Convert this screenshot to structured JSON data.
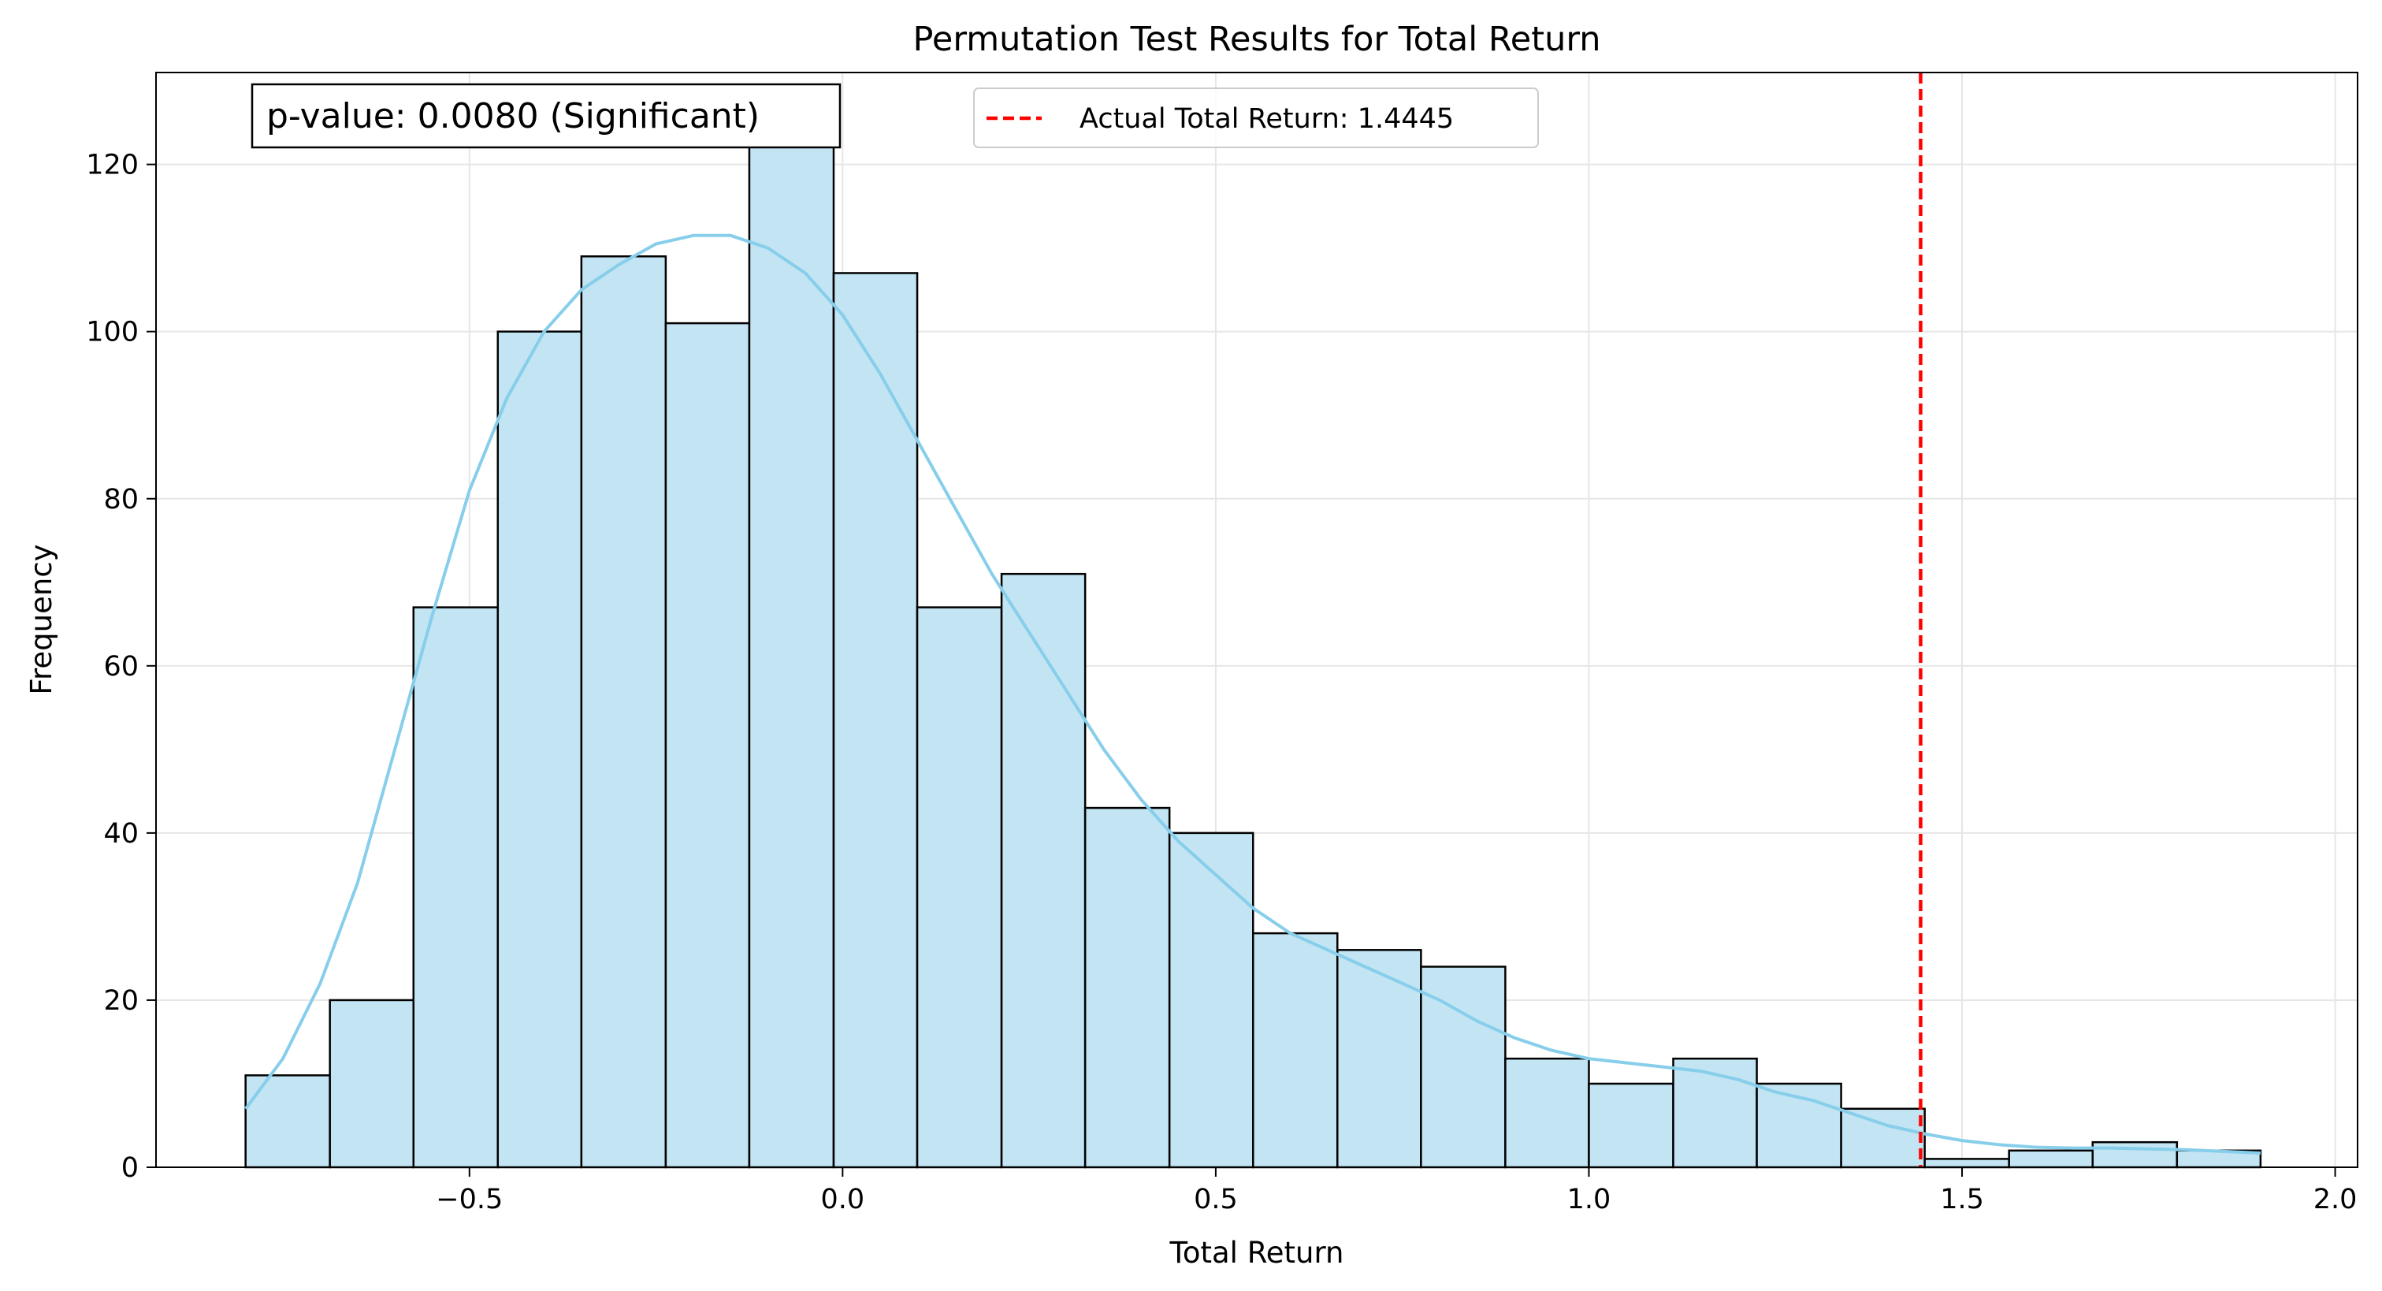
{
  "chart_data": {
    "type": "bar",
    "title": "Permutation Test Results for Total Return",
    "xlabel": "Total Return",
    "ylabel": "Frequency",
    "xlim": [
      -0.92,
      2.03
    ],
    "ylim": [
      0,
      131
    ],
    "xticks": [
      {
        "value": -0.5,
        "label": "−0.5"
      },
      {
        "value": 0.0,
        "label": "0.0"
      },
      {
        "value": 0.5,
        "label": "0.5"
      },
      {
        "value": 1.0,
        "label": "1.0"
      },
      {
        "value": 1.5,
        "label": "1.5"
      },
      {
        "value": 2.0,
        "label": "2.0"
      }
    ],
    "yticks": [
      {
        "value": 0,
        "label": "0"
      },
      {
        "value": 20,
        "label": "20"
      },
      {
        "value": 40,
        "label": "40"
      },
      {
        "value": 60,
        "label": "60"
      },
      {
        "value": 80,
        "label": "80"
      },
      {
        "value": 100,
        "label": "100"
      },
      {
        "value": 120,
        "label": "120"
      }
    ],
    "grid": true,
    "bin_edges": [
      -0.8,
      -0.687,
      -0.575,
      -0.462,
      -0.35,
      -0.237,
      -0.125,
      -0.012,
      0.1,
      0.213,
      0.325,
      0.438,
      0.55,
      0.663,
      0.775,
      0.888,
      1.0,
      1.113,
      1.225,
      1.338,
      1.45,
      1.563,
      1.675,
      1.788,
      1.9
    ],
    "counts": [
      11,
      20,
      67,
      100,
      109,
      101,
      125,
      107,
      67,
      71,
      43,
      40,
      28,
      26,
      24,
      13,
      10,
      13,
      10,
      7,
      1,
      2,
      3,
      2
    ],
    "bar_color": "#c2e4f3",
    "bar_edge_color": "#000000",
    "kde": {
      "color": "#87ceeb",
      "x": [
        -0.8,
        -0.75,
        -0.7,
        -0.65,
        -0.6,
        -0.55,
        -0.5,
        -0.45,
        -0.4,
        -0.35,
        -0.3,
        -0.25,
        -0.2,
        -0.15,
        -0.1,
        -0.05,
        0.0,
        0.05,
        0.1,
        0.15,
        0.2,
        0.25,
        0.3,
        0.35,
        0.4,
        0.45,
        0.5,
        0.55,
        0.6,
        0.65,
        0.7,
        0.75,
        0.8,
        0.85,
        0.9,
        0.95,
        1.0,
        1.05,
        1.1,
        1.15,
        1.2,
        1.25,
        1.3,
        1.35,
        1.4,
        1.45,
        1.5,
        1.55,
        1.6,
        1.65,
        1.7,
        1.75,
        1.8,
        1.85,
        1.9
      ],
      "y": [
        7,
        13,
        22,
        34,
        50,
        66,
        81,
        92,
        100,
        105,
        108,
        110.5,
        111.5,
        111.5,
        110,
        107,
        102,
        95,
        87,
        79,
        71,
        64,
        57,
        50,
        44,
        39,
        35,
        31,
        28,
        26,
        24,
        22,
        20,
        17.5,
        15.5,
        14,
        13,
        12.5,
        12,
        11.5,
        10.5,
        9,
        8,
        6.5,
        5,
        4,
        3.2,
        2.7,
        2.4,
        2.3,
        2.3,
        2.2,
        2.1,
        1.9,
        1.7
      ]
    },
    "reference_line": {
      "value": 1.4445,
      "color": "#ff0000",
      "legend_label": "Actual Total Return: 1.4445"
    },
    "legend_placement": "top-center",
    "annotation": {
      "text": "p-value: 0.0080 (Significant)",
      "placement": "top-left"
    }
  }
}
